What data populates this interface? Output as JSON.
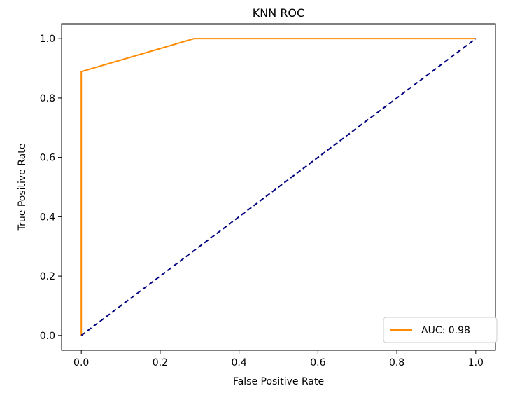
{
  "chart_data": {
    "type": "line",
    "title": "KNN ROC",
    "xlabel": "False Positive Rate",
    "ylabel": "True Positive Rate",
    "xlim": [
      -0.05,
      1.05
    ],
    "ylim": [
      -0.05,
      1.05
    ],
    "xticks": [
      0.0,
      0.2,
      0.4,
      0.6,
      0.8,
      1.0
    ],
    "xtick_labels": [
      "0.0",
      "0.2",
      "0.4",
      "0.6",
      "0.8",
      "1.0"
    ],
    "yticks": [
      0.0,
      0.2,
      0.4,
      0.6,
      0.8,
      1.0
    ],
    "ytick_labels": [
      "0.0",
      "0.2",
      "0.4",
      "0.6",
      "0.8",
      "1.0"
    ],
    "grid": false,
    "legend": {
      "position": "lower right"
    },
    "series": [
      {
        "name": "AUC: 0.98",
        "color": "#ff8c00",
        "style": "solid",
        "x": [
          0.0,
          0.0,
          0.0,
          0.2857,
          1.0
        ],
        "y": [
          0.0,
          0.0,
          0.8889,
          1.0,
          1.0
        ]
      },
      {
        "color": "#000080",
        "style": "dashed",
        "x": [
          0.0,
          1.0
        ],
        "y": [
          0.0,
          1.0
        ]
      }
    ]
  }
}
